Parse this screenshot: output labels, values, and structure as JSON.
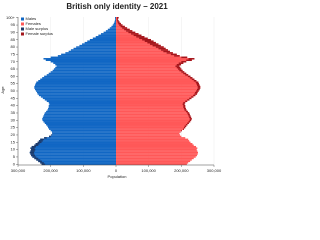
{
  "chart_data": {
    "type": "population-pyramid",
    "title": "British only identity – 2021",
    "x_label": "Population",
    "y_label": "Age",
    "ages": [
      0,
      1,
      2,
      3,
      4,
      5,
      6,
      7,
      8,
      9,
      10,
      11,
      12,
      13,
      14,
      15,
      16,
      17,
      18,
      19,
      20,
      21,
      22,
      23,
      24,
      25,
      26,
      27,
      28,
      29,
      30,
      31,
      32,
      33,
      34,
      35,
      36,
      37,
      38,
      39,
      40,
      41,
      42,
      43,
      44,
      45,
      46,
      47,
      48,
      49,
      50,
      51,
      52,
      53,
      54,
      55,
      56,
      57,
      58,
      59,
      60,
      61,
      62,
      63,
      64,
      65,
      66,
      67,
      68,
      69,
      70,
      71,
      72,
      73,
      74,
      75,
      76,
      77,
      78,
      79,
      80,
      81,
      82,
      83,
      84,
      85,
      86,
      87,
      88,
      89,
      90,
      91,
      92,
      93,
      94,
      95,
      96,
      97,
      98,
      99,
      100
    ],
    "series": [
      {
        "name": "Males",
        "color": "#1167c4",
        "surplus_name": "Male surplus",
        "surplus_color": "#1d3a6a",
        "side": "left",
        "values": [
          228000,
          232000,
          238000,
          244000,
          250000,
          256000,
          260000,
          262000,
          264000,
          262000,
          260000,
          262000,
          258000,
          250000,
          246000,
          240000,
          236000,
          232000,
          220000,
          205000,
          198000,
          195000,
          196000,
          200000,
          205000,
          208000,
          210000,
          214000,
          218000,
          222000,
          225000,
          226000,
          224000,
          222000,
          220000,
          218000,
          214000,
          210000,
          208000,
          206000,
          206000,
          204000,
          206000,
          212000,
          218000,
          224000,
          230000,
          236000,
          240000,
          242000,
          245000,
          248000,
          250000,
          250000,
          248000,
          246000,
          244000,
          238000,
          232000,
          226000,
          220000,
          212000,
          206000,
          200000,
          194000,
          190000,
          186000,
          182000,
          186000,
          192000,
          200000,
          215000,
          222000,
          200000,
          178000,
          168000,
          155000,
          145000,
          138000,
          130000,
          122000,
          112000,
          104000,
          96000,
          88000,
          80000,
          71000,
          62000,
          54000,
          46000,
          38000,
          31000,
          25000,
          19000,
          14000,
          10000,
          7000,
          5000,
          3500,
          2500,
          3000
        ]
      },
      {
        "name": "Females",
        "color": "#ff5858",
        "surplus_name": "Female surplus",
        "surplus_color": "#a3161c",
        "side": "right",
        "values": [
          217000,
          221000,
          227000,
          232000,
          238000,
          244000,
          248000,
          250000,
          251000,
          249000,
          247000,
          249000,
          245000,
          238000,
          234000,
          228000,
          224000,
          221000,
          212000,
          200000,
          196000,
          194000,
          197000,
          202000,
          208000,
          212000,
          215000,
          219000,
          223000,
          227000,
          230000,
          232000,
          230000,
          228000,
          226000,
          224000,
          220000,
          216000,
          214000,
          212000,
          212000,
          210000,
          212000,
          218000,
          225000,
          231000,
          237000,
          243000,
          248000,
          250000,
          253000,
          256000,
          258000,
          258000,
          256000,
          254000,
          252000,
          246000,
          240000,
          234000,
          228000,
          221000,
          215000,
          209000,
          204000,
          200000,
          197000,
          194000,
          199000,
          206000,
          215000,
          232000,
          240000,
          218000,
          195000,
          186000,
          174000,
          165000,
          159000,
          152000,
          146000,
          137000,
          130000,
          122000,
          115000,
          107000,
          97000,
          87000,
          78000,
          69000,
          59000,
          50000,
          42000,
          34000,
          27000,
          20000,
          15000,
          11000,
          8000,
          5500,
          8000
        ]
      }
    ],
    "xlim": [
      -300000,
      300000
    ],
    "xticks": [
      {
        "value": -300000,
        "label": "300,000"
      },
      {
        "value": -200000,
        "label": "200,000"
      },
      {
        "value": -100000,
        "label": "100,000"
      },
      0,
      {
        "value": 100000,
        "label": "100,000"
      },
      {
        "value": 200000,
        "label": "200,000"
      },
      {
        "value": 300000,
        "label": "300,000"
      }
    ],
    "ylim": [
      0,
      101
    ],
    "yticks": [
      0,
      5,
      10,
      15,
      20,
      25,
      30,
      35,
      40,
      45,
      50,
      55,
      60,
      65,
      70,
      75,
      80,
      85,
      90,
      95,
      {
        "value": 100,
        "label": "100+"
      }
    ],
    "legend": "top-left"
  }
}
